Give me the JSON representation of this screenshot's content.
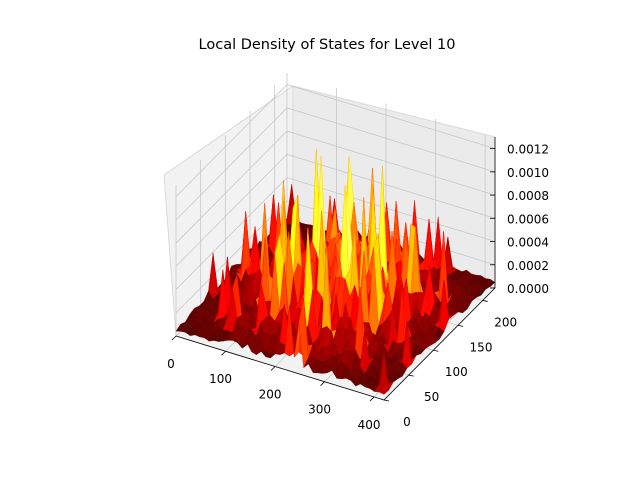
{
  "chart_data": {
    "type": "surface3d",
    "title": "Local Density of States for Level 10",
    "colormap": "hot",
    "x_ticks": [
      "0",
      "100",
      "200",
      "300",
      "400"
    ],
    "y_ticks": [
      "0",
      "50",
      "100",
      "150",
      "200"
    ],
    "z_ticks": [
      "0.0000",
      "0.0002",
      "0.0004",
      "0.0006",
      "0.0008",
      "0.0010",
      "0.0012"
    ],
    "x_range": [
      0,
      420
    ],
    "y_range": [
      0,
      225
    ],
    "z_range": [
      0,
      0.0013
    ],
    "grid": true,
    "pane_color": "#f2f2f2"
  }
}
